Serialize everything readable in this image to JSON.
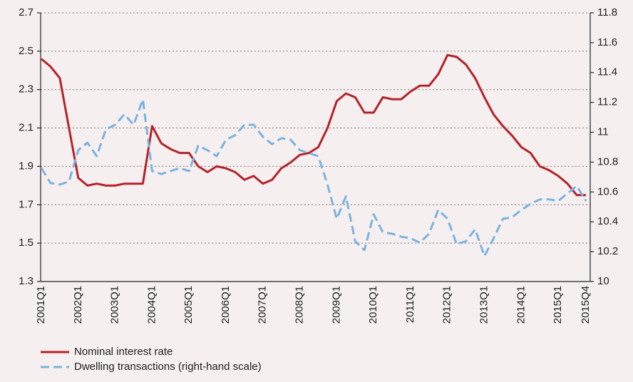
{
  "chart_data": {
    "type": "line",
    "categories": [
      "2001Q1",
      null,
      null,
      null,
      "2002Q1",
      null,
      null,
      null,
      "2003Q1",
      null,
      null,
      null,
      "2004Q1",
      null,
      null,
      null,
      "2005Q1",
      null,
      null,
      null,
      "2006Q1",
      null,
      null,
      null,
      "2007Q1",
      null,
      null,
      null,
      "2008Q1",
      null,
      null,
      null,
      "2009Q1",
      null,
      null,
      null,
      "2010Q1",
      null,
      null,
      null,
      "2011Q1",
      null,
      null,
      null,
      "2012Q1",
      null,
      null,
      null,
      "2013Q1",
      null,
      null,
      null,
      "2014Q1",
      null,
      null,
      null,
      "2015Q1",
      null,
      null,
      "2015Q4"
    ],
    "series": [
      {
        "name": "Nominal interest rate",
        "color": "#b3232b",
        "values": [
          2.46,
          2.42,
          2.36,
          2.1,
          1.84,
          1.8,
          1.81,
          1.8,
          1.8,
          1.81,
          1.81,
          1.81,
          2.11,
          2.02,
          1.99,
          1.97,
          1.97,
          1.9,
          1.87,
          1.9,
          1.89,
          1.87,
          1.83,
          1.85,
          1.81,
          1.83,
          1.89,
          1.92,
          1.96,
          1.97,
          2.0,
          2.1,
          2.24,
          2.28,
          2.26,
          2.18,
          2.18,
          2.26,
          2.25,
          2.25,
          2.29,
          2.32,
          2.32,
          2.38,
          2.48,
          2.47,
          2.43,
          2.36,
          2.26,
          2.17,
          2.11,
          2.06,
          2.0,
          1.97,
          1.9,
          1.88,
          1.85,
          1.81,
          1.75,
          1.75
        ]
      },
      {
        "name": "Dwelling transactions (right-hand scale)",
        "color": "#7ab3e0",
        "axis": "y2",
        "dashed": true,
        "values": [
          10.76,
          10.66,
          10.65,
          10.67,
          10.88,
          10.93,
          10.84,
          11.02,
          11.05,
          11.12,
          11.05,
          11.22,
          10.74,
          10.72,
          10.74,
          10.76,
          10.74,
          10.91,
          10.88,
          10.84,
          10.95,
          10.98,
          11.05,
          11.05,
          10.97,
          10.92,
          10.96,
          10.95,
          10.88,
          10.86,
          10.84,
          10.65,
          10.42,
          10.57,
          10.27,
          10.21,
          10.45,
          10.33,
          10.32,
          10.3,
          10.29,
          10.26,
          10.32,
          10.48,
          10.42,
          10.25,
          10.27,
          10.35,
          10.17,
          10.29,
          10.42,
          10.43,
          10.48,
          10.52,
          10.55,
          10.55,
          10.54,
          10.59,
          10.64,
          10.54
        ]
      }
    ],
    "ylim": [
      1.3,
      2.7
    ],
    "yticks": [
      1.3,
      1.5,
      1.7,
      1.9,
      2.1,
      2.3,
      2.5,
      2.7
    ],
    "y2lim": [
      10,
      11.8
    ],
    "y2ticks": [
      10,
      10.2,
      10.4,
      10.6,
      10.8,
      11,
      11.2,
      11.4,
      11.6,
      11.8
    ],
    "grid": true,
    "legend": "bottom-left"
  }
}
